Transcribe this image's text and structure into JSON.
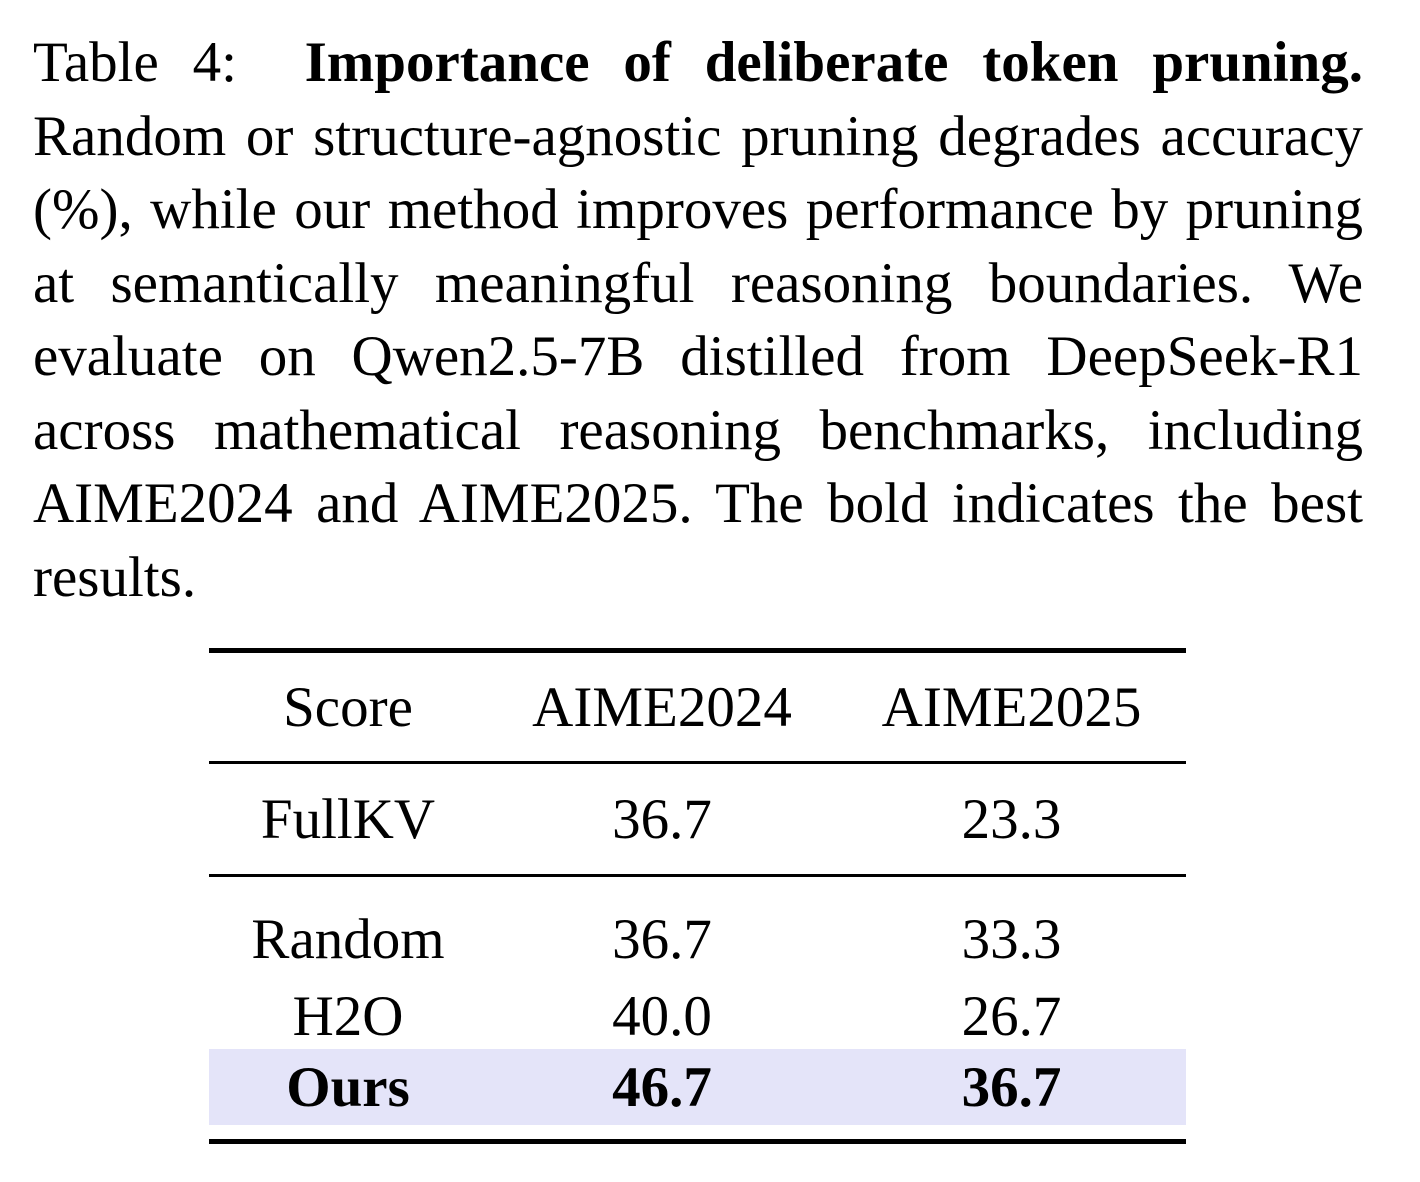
{
  "caption": {
    "label": "Table 4:",
    "title": "Importance of deliberate token pruning.",
    "body": "Random or structure-agnostic pruning degrades accu­racy (%), while our method improves performance by pruning at semantically meaningful reasoning bound­aries. We evaluate on Qwen2.5-7B distilled from DeepSeek-R1 across mathematical reasoning bench­marks, including AIME2024 and AIME2025. The bold indicates the best results."
  },
  "table": {
    "headers": [
      "Score",
      "AIME2024",
      "AIME2025"
    ],
    "rows": [
      {
        "method": "FullKV",
        "aime2024": "36.7",
        "aime2025": "23.3"
      },
      {
        "method": "Random",
        "aime2024": "36.7",
        "aime2025": "33.3"
      },
      {
        "method": "H2O",
        "aime2024": "40.0",
        "aime2025": "26.7"
      },
      {
        "method": "Ours",
        "aime2024": "46.7",
        "aime2025": "36.7"
      }
    ],
    "highlight_color": "#e4e4f9"
  }
}
